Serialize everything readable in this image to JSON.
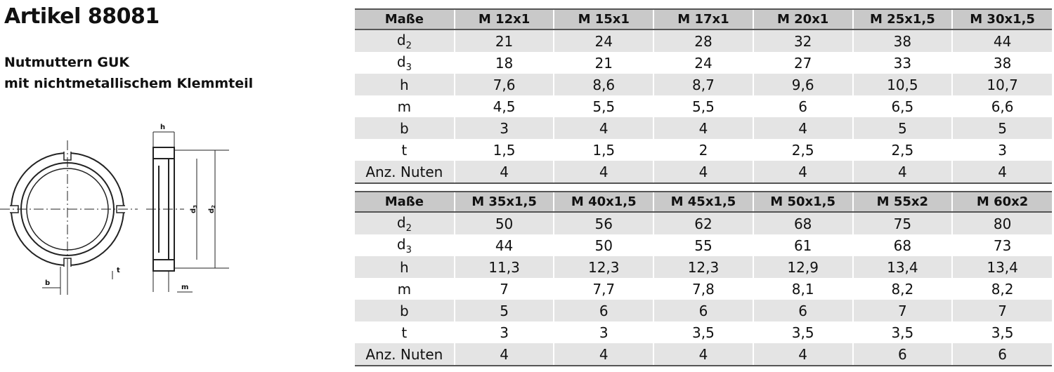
{
  "header": {
    "title": "Artikel 88081",
    "subtitle": [
      "Nutmuttern GUK",
      "mit nichtmetallischem Klemmteil"
    ]
  },
  "drawing": {
    "h": "h",
    "b": "b",
    "t": "t",
    "m": "m",
    "d3": {
      "main": "d",
      "sub": "3"
    },
    "d2": {
      "main": "d",
      "sub": "2"
    }
  },
  "tables": [
    {
      "columns": [
        "Maße",
        "M 12x1",
        "M 15x1",
        "M 17x1",
        "M 20x1",
        "M 25x1,5",
        "M 30x1,5"
      ],
      "rows": [
        {
          "label": {
            "main": "d",
            "sub": "2"
          },
          "values": [
            "21",
            "24",
            "28",
            "32",
            "38",
            "44"
          ]
        },
        {
          "label": {
            "main": "d",
            "sub": "3"
          },
          "values": [
            "18",
            "21",
            "24",
            "27",
            "33",
            "38"
          ]
        },
        {
          "label": {
            "main": "h"
          },
          "values": [
            "7,6",
            "8,6",
            "8,7",
            "9,6",
            "10,5",
            "10,7"
          ]
        },
        {
          "label": {
            "main": "m"
          },
          "values": [
            "4,5",
            "5,5",
            "5,5",
            "6",
            "6,5",
            "6,6"
          ]
        },
        {
          "label": {
            "main": "b"
          },
          "values": [
            "3",
            "4",
            "4",
            "4",
            "5",
            "5"
          ]
        },
        {
          "label": {
            "main": "t"
          },
          "values": [
            "1,5",
            "1,5",
            "2",
            "2,5",
            "2,5",
            "3"
          ]
        },
        {
          "label": {
            "main": "Anz. Nuten"
          },
          "values": [
            "4",
            "4",
            "4",
            "4",
            "4",
            "4"
          ]
        }
      ]
    },
    {
      "columns": [
        "Maße",
        "M 35x1,5",
        "M 40x1,5",
        "M 45x1,5",
        "M 50x1,5",
        "M 55x2",
        "M 60x2"
      ],
      "rows": [
        {
          "label": {
            "main": "d",
            "sub": "2"
          },
          "values": [
            "50",
            "56",
            "62",
            "68",
            "75",
            "80"
          ]
        },
        {
          "label": {
            "main": "d",
            "sub": "3"
          },
          "values": [
            "44",
            "50",
            "55",
            "61",
            "68",
            "73"
          ]
        },
        {
          "label": {
            "main": "h"
          },
          "values": [
            "11,3",
            "12,3",
            "12,3",
            "12,9",
            "13,4",
            "13,4"
          ]
        },
        {
          "label": {
            "main": "m"
          },
          "values": [
            "7",
            "7,7",
            "7,8",
            "8,1",
            "8,2",
            "8,2"
          ]
        },
        {
          "label": {
            "main": "b"
          },
          "values": [
            "5",
            "6",
            "6",
            "6",
            "7",
            "7"
          ]
        },
        {
          "label": {
            "main": "t"
          },
          "values": [
            "3",
            "3",
            "3,5",
            "3,5",
            "3,5",
            "3,5"
          ]
        },
        {
          "label": {
            "main": "Anz. Nuten"
          },
          "values": [
            "4",
            "4",
            "4",
            "4",
            "6",
            "6"
          ]
        }
      ]
    }
  ]
}
